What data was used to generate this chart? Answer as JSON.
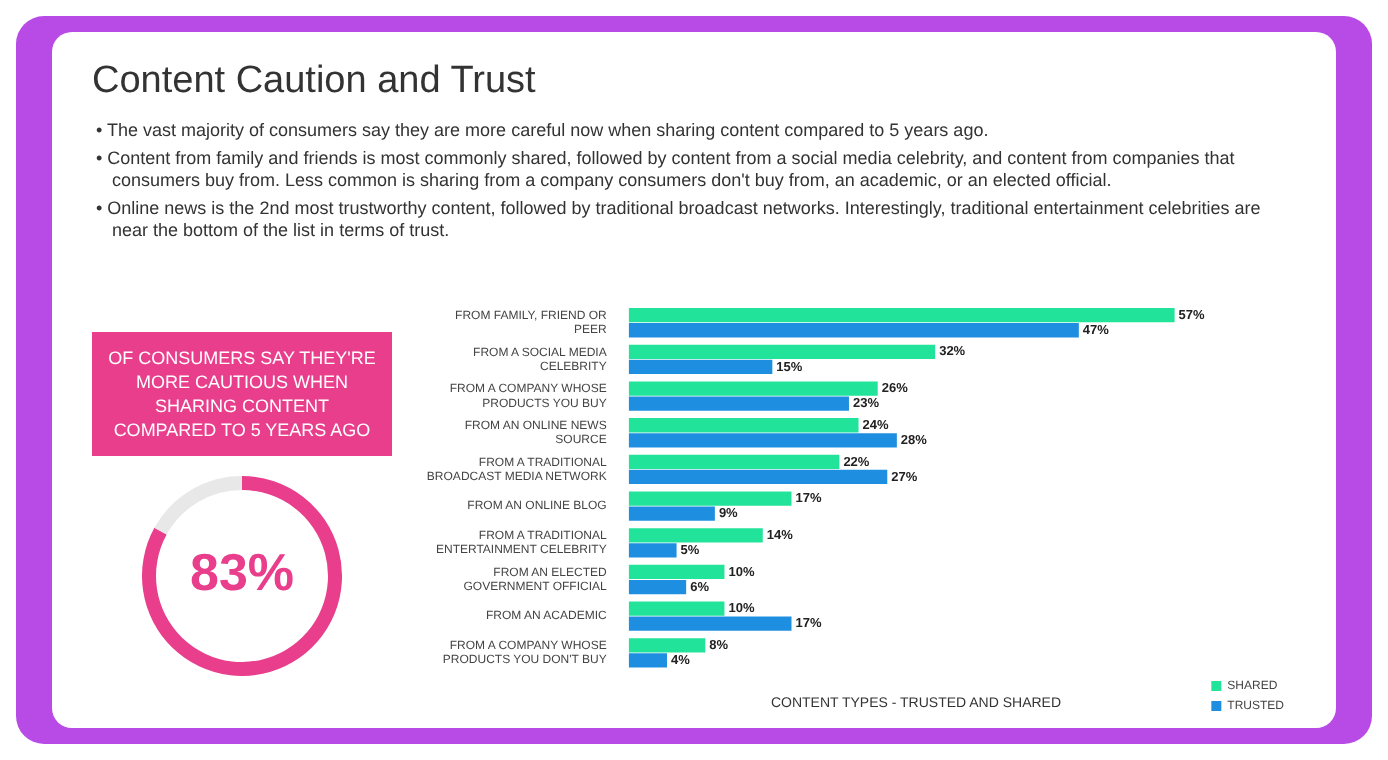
{
  "chart_data": [
    {
      "type": "other",
      "title": "Content Caution and Trust",
      "annotations": [
        "• The vast majority of consumers say they are more careful now when sharing content compared to 5 years ago.",
        "• Content from family and friends is most commonly shared, followed by content from a social media celebrity, and content from companies that consumers buy from. Less common is sharing from a company consumers don't buy from, an academic, or an elected official.",
        "• Online news is the 2nd most trustworthy content, followed by traditional broadcast networks. Interestingly, traditional entertainment celebrities are near the bottom of the list in terms of trust."
      ]
    },
    {
      "type": "donut",
      "title": "OF CONSUMERS SAY THEY'RE MORE CAUTIOUS WHEN SHARING CONTENT COMPARED TO 5 YEARS AGO",
      "categories": [
        null,
        null
      ],
      "values": [
        83,
        17
      ],
      "colors": [
        "#e83e8c",
        "#e8e8e8"
      ],
      "annotations": [
        "83%"
      ]
    },
    {
      "type": "bar",
      "orientation": "horizontal",
      "xlabel": "CONTENT TYPES - TRUSTED AND SHARED",
      "legend": "bottom right",
      "categories": [
        "FROM FAMILY, FRIEND OR PEER",
        "FROM A SOCIAL MEDIA CELEBRITY",
        "FROM A COMPANY WHOSE PRODUCTS YOU BUY",
        "FROM AN ONLINE NEWS SOURCE",
        "FROM A TRADITIONAL BROADCAST MEDIA NETWORK",
        "FROM AN ONLINE BLOG",
        "FROM A TRADITIONAL ENTERTAINMENT CELEBRITY",
        "FROM AN ELECTED GOVERNMENT OFFICIAL",
        "FROM AN ACADEMIC",
        "FROM A COMPANY WHOSE PRODUCTS YOU DON'T BUY"
      ],
      "series": [
        {
          "name": "SHARED",
          "color": "#22e39a",
          "values": [
            57,
            32,
            26,
            24,
            22,
            17,
            14,
            10,
            10,
            8
          ],
          "value_labels": [
            "57%",
            "32%",
            "26%",
            "24%",
            "22%",
            "17%",
            "14%",
            "10%",
            "10%",
            "8%"
          ]
        },
        {
          "name": "TRUSTED",
          "color": "#1e8fe0",
          "values": [
            47,
            15,
            23,
            28,
            27,
            9,
            5,
            6,
            17,
            4
          ],
          "value_labels": [
            "47%",
            "15%",
            "23%",
            "28%",
            "27%",
            "9%",
            "5%",
            "6%",
            "17%",
            "4%"
          ]
        }
      ]
    }
  ]
}
